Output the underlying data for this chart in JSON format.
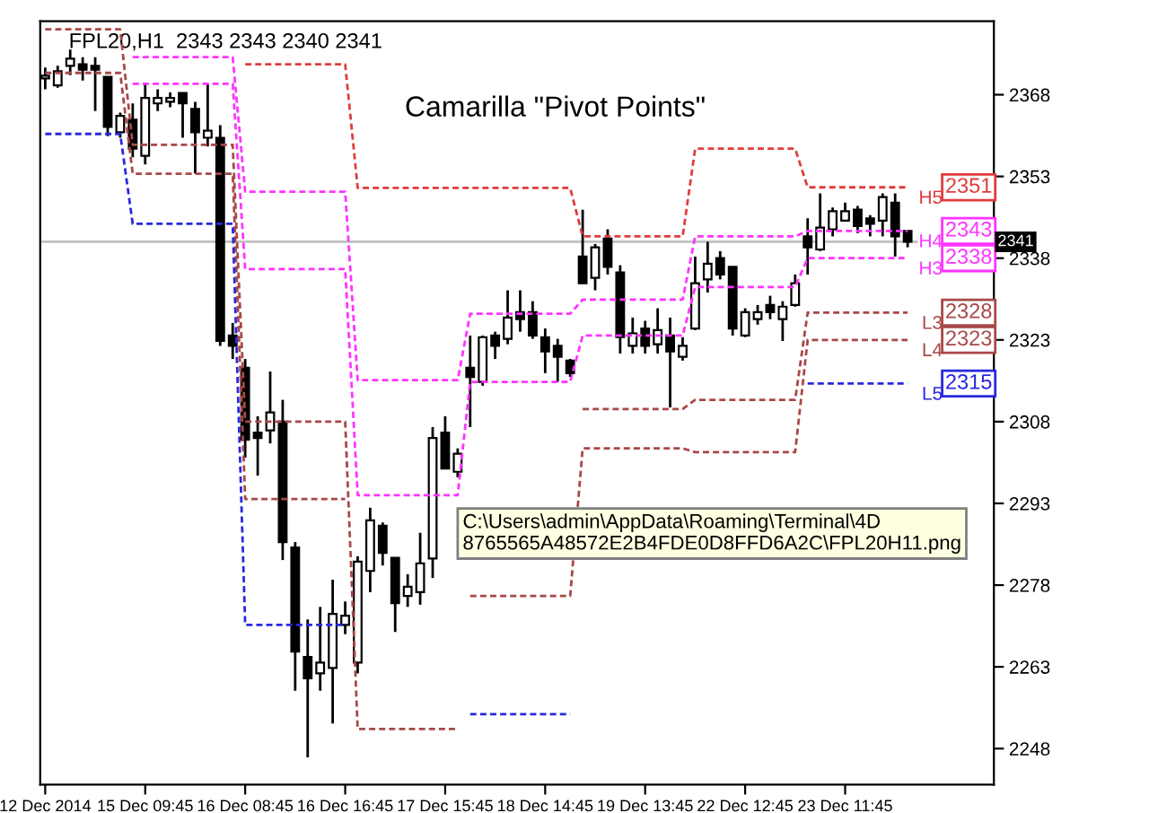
{
  "chart_data": {
    "type": "candlestick",
    "title": "Camarilla \"Pivot Points\"",
    "subtitle": "FPL20,H1  2343 2343 2340 2341",
    "annotations": [
      "C:\\Users\\admin\\AppData\\Roaming\\Terminal\\4D\n8765565A48572E2B4FDE0D8FFD6A2C\\FPL20H11.png"
    ],
    "categories": [
      "12 Dec 2014",
      null,
      null,
      null,
      null,
      null,
      null,
      null,
      "15 Dec 09:45",
      null,
      null,
      null,
      null,
      null,
      null,
      null,
      "16 Dec 08:45",
      null,
      null,
      null,
      null,
      null,
      null,
      null,
      "16 Dec 16:45",
      null,
      null,
      null,
      null,
      null,
      null,
      null,
      "17 Dec 15:45",
      null,
      null,
      null,
      null,
      null,
      null,
      null,
      "18 Dec 14:45",
      null,
      null,
      null,
      null,
      null,
      null,
      null,
      "19 Dec 13:45",
      null,
      null,
      null,
      null,
      null,
      null,
      null,
      "22 Dec 12:45",
      null,
      null,
      null,
      null,
      null,
      null,
      null,
      "23 Dec 11:45",
      null,
      null,
      null,
      null,
      null
    ],
    "ohlc": [
      [
        2371,
        2373,
        2369,
        2371.5
      ],
      [
        2369.7,
        2373.3,
        2369.3,
        2372.3
      ],
      [
        2373.3,
        2376.3,
        2371.6,
        2374.6
      ],
      [
        2373.6,
        2374.9,
        2370.6,
        2372.6
      ],
      [
        2373.3,
        2374.9,
        2365.0,
        2372.6
      ],
      [
        2371.3,
        2371.3,
        2360.4,
        2362.1
      ],
      [
        2361.1,
        2364.7,
        2360.1,
        2364.1
      ],
      [
        2363.4,
        2366.4,
        2356.5,
        2358.1
      ],
      [
        2356.8,
        2370.0,
        2355.2,
        2367.4
      ],
      [
        2366.4,
        2369.0,
        2365.0,
        2367.4
      ],
      [
        2366.7,
        2368.4,
        2365.7,
        2367.4
      ],
      [
        2368.3,
        2368.3,
        2360.1,
        2366.4
      ],
      [
        2365.4,
        2366.7,
        2353.5,
        2361.1
      ],
      [
        2360.1,
        2370.0,
        2358.5,
        2361.4
      ],
      [
        2360.1,
        2362.4,
        2321.9,
        2322.8
      ],
      [
        2323.8,
        2326.1,
        2319.5,
        2321.9
      ],
      [
        2317.9,
        2319.5,
        2301.4,
        2304.7
      ],
      [
        2306.0,
        2309.0,
        2298.1,
        2305.0
      ],
      [
        2306.4,
        2317.2,
        2304.0,
        2309.7
      ],
      [
        2308.0,
        2312.0,
        2282.6,
        2285.9
      ],
      [
        2284.9,
        2285.9,
        2258.6,
        2265.8
      ],
      [
        2264.8,
        2271.7,
        2246.4,
        2260.9
      ],
      [
        2261.8,
        2274.0,
        2258.6,
        2263.8
      ],
      [
        2262.8,
        2279.0,
        2252.6,
        2272.7
      ],
      [
        2270.7,
        2275.0,
        2269.0,
        2272.4
      ],
      [
        2263.8,
        2283.3,
        2261.8,
        2282.3
      ],
      [
        2280.6,
        2292.2,
        2276.7,
        2289.9
      ],
      [
        2288.9,
        2289.5,
        2281.6,
        2283.9
      ],
      [
        2283.0,
        2283.0,
        2269.4,
        2274.7
      ],
      [
        2276.0,
        2280.0,
        2274.0,
        2277.7
      ],
      [
        2276.7,
        2287.6,
        2274.4,
        2282.0
      ],
      [
        2282.9,
        2307.0,
        2279.3,
        2305.0
      ],
      [
        2306.0,
        2309.0,
        2299.4,
        2299.4
      ],
      [
        2298.8,
        2303.1,
        2297.8,
        2302.1
      ],
      [
        2317.9,
        2323.8,
        2307.0,
        2316.2
      ],
      [
        2315.3,
        2323.8,
        2314.6,
        2323.5
      ],
      [
        2323.8,
        2324.5,
        2319.5,
        2321.9
      ],
      [
        2323.2,
        2332.1,
        2322.2,
        2327.1
      ],
      [
        2328.1,
        2332.1,
        2324.5,
        2326.8
      ],
      [
        2328.1,
        2330.1,
        2323.2,
        2323.8
      ],
      [
        2323.5,
        2325.1,
        2316.9,
        2320.9
      ],
      [
        2321.9,
        2323.2,
        2315.3,
        2319.9
      ],
      [
        2319.2,
        2319.5,
        2316.2,
        2316.9
      ],
      [
        2338.3,
        2346.9,
        2333.4,
        2333.4
      ],
      [
        2334.4,
        2340.6,
        2332.1,
        2340.0
      ],
      [
        2341.6,
        2343.3,
        2335.0,
        2336.4
      ],
      [
        2335.4,
        2336.7,
        2320.5,
        2323.5
      ],
      [
        2321.9,
        2327.1,
        2320.5,
        2324.2
      ],
      [
        2325.1,
        2326.5,
        2320.5,
        2321.9
      ],
      [
        2322.2,
        2328.8,
        2320.5,
        2324.8
      ],
      [
        2323.8,
        2327.1,
        2310.6,
        2320.9
      ],
      [
        2319.9,
        2323.5,
        2319.2,
        2321.9
      ],
      [
        2325.1,
        2338.3,
        2324.8,
        2333.4
      ],
      [
        2334.1,
        2341.0,
        2331.7,
        2337.0
      ],
      [
        2338.0,
        2339.3,
        2334.1,
        2335.0
      ],
      [
        2336.4,
        2336.4,
        2323.8,
        2325.1
      ],
      [
        2323.8,
        2328.8,
        2323.5,
        2328.1
      ],
      [
        2326.8,
        2329.4,
        2325.8,
        2328.1
      ],
      [
        2329.4,
        2331.1,
        2326.8,
        2328.1
      ],
      [
        2326.8,
        2330.1,
        2322.8,
        2329.1
      ],
      [
        2329.4,
        2335.0,
        2329.1,
        2333.4
      ],
      [
        2342.0,
        2345.3,
        2335.0,
        2340.0
      ],
      [
        2339.6,
        2349.9,
        2339.3,
        2343.6
      ],
      [
        2343.3,
        2347.3,
        2342.0,
        2346.6
      ],
      [
        2344.9,
        2348.2,
        2344.9,
        2346.6
      ],
      [
        2346.9,
        2347.6,
        2342.6,
        2343.9
      ],
      [
        2345.3,
        2345.9,
        2342.0,
        2344.3
      ],
      [
        2344.9,
        2349.9,
        2342.0,
        2349.2
      ],
      [
        2348.2,
        2349.9,
        2338.3,
        2342.0
      ],
      [
        2343,
        2343,
        2340,
        2341
      ]
    ],
    "series": [
      {
        "name": "H5",
        "type": "line",
        "color": "#e03c3c",
        "line_style": "dashed",
        "values": [
          null,
          null,
          null,
          null,
          null,
          null,
          null,
          null,
          null,
          null,
          null,
          null,
          null,
          null,
          null,
          null,
          2373.6,
          2373.6,
          2373.6,
          2373.6,
          2373.6,
          2373.6,
          2373.6,
          2373.6,
          2373.6,
          2350.9,
          2350.9,
          2350.9,
          2350.9,
          2350.9,
          2350.9,
          2350.9,
          2350.9,
          2350.9,
          2350.9,
          2350.9,
          2350.9,
          2350.9,
          2350.9,
          2350.9,
          2350.9,
          2350.9,
          2350.9,
          2342.0,
          2342.0,
          2342.0,
          2342.0,
          2342.0,
          2342.0,
          2342.0,
          2342.0,
          2342.0,
          2358.1,
          2358.1,
          2358.1,
          2358.1,
          2358.1,
          2358.1,
          2358.1,
          2358.1,
          2358.1,
          2351,
          2351,
          2351,
          2351,
          2351,
          2351,
          2351,
          2351,
          2351
        ],
        "value_labels": [
          null,
          null,
          null,
          null,
          null,
          null,
          null,
          null,
          null,
          null,
          null,
          null,
          null,
          null,
          null,
          null,
          null,
          null,
          null,
          null,
          null,
          null,
          null,
          null,
          null,
          null,
          null,
          null,
          null,
          null,
          null,
          null,
          null,
          null,
          null,
          null,
          null,
          null,
          null,
          null,
          null,
          null,
          null,
          null,
          null,
          null,
          null,
          null,
          null,
          null,
          null,
          null,
          null,
          null,
          null,
          null,
          null,
          null,
          null,
          null,
          null,
          null,
          null,
          null,
          null,
          null,
          null,
          null,
          null,
          "2351"
        ]
      },
      {
        "name": "H4",
        "type": "line",
        "color": "#ff33ff",
        "line_style": "dashed",
        "values": [
          null,
          null,
          null,
          null,
          null,
          null,
          null,
          2374.9,
          2374.9,
          2374.9,
          2374.9,
          2374.9,
          2374.9,
          2374.9,
          2374.9,
          2374.9,
          2350.2,
          2350.2,
          2350.2,
          2350.2,
          2350.2,
          2350.2,
          2350.2,
          2350.2,
          2350.2,
          2315.6,
          2315.6,
          2315.6,
          2315.6,
          2315.6,
          2315.6,
          2315.6,
          2315.6,
          2315.6,
          2327.8,
          2327.8,
          2327.8,
          2327.8,
          2327.8,
          2327.8,
          2327.8,
          2327.8,
          2327.8,
          2330.4,
          2330.4,
          2330.4,
          2330.4,
          2330.4,
          2330.4,
          2330.4,
          2330.4,
          2330.4,
          2342.0,
          2342.0,
          2342.0,
          2342.0,
          2342.0,
          2342.0,
          2342.0,
          2342.0,
          2342.0,
          2343,
          2343,
          2343,
          2343,
          2343,
          2343,
          2343,
          2343,
          2343
        ],
        "value_labels": [
          null,
          null,
          null,
          null,
          null,
          null,
          null,
          null,
          null,
          null,
          null,
          null,
          null,
          null,
          null,
          null,
          null,
          null,
          null,
          null,
          null,
          null,
          null,
          null,
          null,
          null,
          null,
          null,
          null,
          null,
          null,
          null,
          null,
          null,
          null,
          null,
          null,
          null,
          null,
          null,
          null,
          null,
          null,
          null,
          null,
          null,
          null,
          null,
          null,
          null,
          null,
          null,
          null,
          null,
          null,
          null,
          null,
          null,
          null,
          null,
          null,
          null,
          null,
          null,
          null,
          null,
          null,
          null,
          null,
          "2343"
        ]
      },
      {
        "name": "H3",
        "type": "line",
        "color": "#ff33ff",
        "line_style": "dashed",
        "values": [
          null,
          null,
          null,
          null,
          null,
          null,
          null,
          2370.0,
          2370.0,
          2370.0,
          2370.0,
          2370.0,
          2370.0,
          2370.0,
          2370.0,
          2370.0,
          2336.0,
          2336.0,
          2336.0,
          2336.0,
          2336.0,
          2336.0,
          2336.0,
          2336.0,
          2336.0,
          2294.5,
          2294.5,
          2294.5,
          2294.5,
          2294.5,
          2294.5,
          2294.5,
          2294.5,
          2294.5,
          2315.3,
          2315.3,
          2315.3,
          2315.3,
          2315.3,
          2315.3,
          2315.3,
          2315.3,
          2315.3,
          2323.8,
          2323.8,
          2323.8,
          2323.8,
          2323.8,
          2323.8,
          2323.8,
          2323.8,
          2323.8,
          2332.7,
          2332.7,
          2332.7,
          2332.7,
          2332.7,
          2332.7,
          2332.7,
          2332.7,
          2332.7,
          2338,
          2338,
          2338,
          2338,
          2338,
          2338,
          2338,
          2338,
          2338
        ],
        "value_labels": [
          null,
          null,
          null,
          null,
          null,
          null,
          null,
          null,
          null,
          null,
          null,
          null,
          null,
          null,
          null,
          null,
          null,
          null,
          null,
          null,
          null,
          null,
          null,
          null,
          null,
          null,
          null,
          null,
          null,
          null,
          null,
          null,
          null,
          null,
          null,
          null,
          null,
          null,
          null,
          null,
          null,
          null,
          null,
          null,
          null,
          null,
          null,
          null,
          null,
          null,
          null,
          null,
          null,
          null,
          null,
          null,
          null,
          null,
          null,
          null,
          null,
          null,
          null,
          null,
          null,
          null,
          null,
          null,
          null,
          "2338"
        ]
      },
      {
        "name": "L3",
        "type": "line",
        "color": "#a84848",
        "line_style": "dashed",
        "values": [
          2380,
          2380,
          2380,
          2380,
          2380,
          2380,
          2380,
          2358.8,
          2358.8,
          2358.8,
          2358.8,
          2358.8,
          2358.8,
          2358.8,
          2358.8,
          2358.8,
          2308.0,
          2308.0,
          2308.0,
          2308.0,
          2308.0,
          2308.0,
          2308.0,
          2308.0,
          2308.0,
          2251.6,
          2251.6,
          2251.6,
          2251.6,
          2251.6,
          2251.6,
          2251.6,
          2251.6,
          2251.6,
          null,
          null,
          null,
          null,
          null,
          null,
          null,
          null,
          null,
          2310.3,
          2310.3,
          2310.3,
          2310.3,
          2310.3,
          2310.3,
          2310.3,
          2310.3,
          2310.3,
          2312.0,
          2312.0,
          2312.0,
          2312.0,
          2312.0,
          2312.0,
          2312.0,
          2312.0,
          2312.0,
          2328,
          2328,
          2328,
          2328,
          2328,
          2328,
          2328,
          2328,
          2328
        ],
        "value_labels": [
          null,
          null,
          null,
          null,
          null,
          null,
          null,
          null,
          null,
          null,
          null,
          null,
          null,
          null,
          null,
          null,
          null,
          null,
          null,
          null,
          null,
          null,
          null,
          null,
          null,
          null,
          null,
          null,
          null,
          null,
          null,
          null,
          null,
          null,
          null,
          null,
          null,
          null,
          null,
          null,
          null,
          null,
          null,
          null,
          null,
          null,
          null,
          null,
          null,
          null,
          null,
          null,
          null,
          null,
          null,
          null,
          null,
          null,
          null,
          null,
          null,
          null,
          null,
          null,
          null,
          null,
          null,
          null,
          null,
          "2328"
        ]
      },
      {
        "name": "L4",
        "type": "line",
        "color": "#a84848",
        "line_style": "dashed",
        "values": [
          2372,
          2372,
          2372,
          2372,
          2372,
          2372,
          2372,
          2353.5,
          2353.5,
          2353.5,
          2353.5,
          2353.5,
          2353.5,
          2353.5,
          2353.5,
          2353.5,
          2293.8,
          2293.8,
          2293.8,
          2293.8,
          2293.8,
          2293.8,
          2293.8,
          2293.8,
          2293.8,
          null,
          null,
          null,
          null,
          null,
          null,
          null,
          null,
          null,
          2276.0,
          2276.0,
          2276.0,
          2276.0,
          2276.0,
          2276.0,
          2276.0,
          2276.0,
          2276.0,
          2303.1,
          2303.1,
          2303.1,
          2303.1,
          2303.1,
          2303.1,
          2303.1,
          2303.1,
          2303.1,
          2302.4,
          2302.4,
          2302.4,
          2302.4,
          2302.4,
          2302.4,
          2302.4,
          2302.4,
          2302.4,
          2323,
          2323,
          2323,
          2323,
          2323,
          2323,
          2323,
          2323,
          2323
        ],
        "value_labels": [
          null,
          null,
          null,
          null,
          null,
          null,
          null,
          null,
          null,
          null,
          null,
          null,
          null,
          null,
          null,
          null,
          null,
          null,
          null,
          null,
          null,
          null,
          null,
          null,
          null,
          null,
          null,
          null,
          null,
          null,
          null,
          null,
          null,
          null,
          null,
          null,
          null,
          null,
          null,
          null,
          null,
          null,
          null,
          null,
          null,
          null,
          null,
          null,
          null,
          null,
          null,
          null,
          null,
          null,
          null,
          null,
          null,
          null,
          null,
          null,
          null,
          null,
          null,
          null,
          null,
          null,
          null,
          null,
          null,
          "2323"
        ]
      },
      {
        "name": "L5",
        "type": "line",
        "color": "#2828e0",
        "line_style": "dashed",
        "values": [
          2360.8,
          2360.8,
          2360.8,
          2360.8,
          2360.8,
          2360.8,
          2360.8,
          2344.3,
          2344.3,
          2344.3,
          2344.3,
          2344.3,
          2344.3,
          2344.3,
          2344.3,
          2344.3,
          2270.7,
          2270.7,
          2270.7,
          2270.7,
          2270.7,
          2270.7,
          2270.7,
          2270.7,
          2270.7,
          null,
          null,
          null,
          null,
          null,
          null,
          null,
          null,
          null,
          2254.3,
          2254.3,
          2254.3,
          2254.3,
          2254.3,
          2254.3,
          2254.3,
          2254.3,
          2254.3,
          null,
          null,
          null,
          null,
          null,
          null,
          null,
          null,
          null,
          null,
          null,
          null,
          null,
          null,
          null,
          null,
          null,
          null,
          2315,
          2315,
          2315,
          2315,
          2315,
          2315,
          2315,
          2315,
          2315
        ],
        "value_labels": [
          null,
          null,
          null,
          null,
          null,
          null,
          null,
          null,
          null,
          null,
          null,
          null,
          null,
          null,
          null,
          null,
          null,
          null,
          null,
          null,
          null,
          null,
          null,
          null,
          null,
          null,
          null,
          null,
          null,
          null,
          null,
          null,
          null,
          null,
          null,
          null,
          null,
          null,
          null,
          null,
          null,
          null,
          null,
          null,
          null,
          null,
          null,
          null,
          null,
          null,
          null,
          null,
          null,
          null,
          null,
          null,
          null,
          null,
          null,
          null,
          null,
          null,
          null,
          null,
          null,
          null,
          null,
          null,
          null,
          "2315"
        ]
      }
    ],
    "ref_lines": [
      {
        "axis": "y",
        "value": 2341,
        "label": "2341",
        "color": "#c0c0c0"
      }
    ],
    "ylim": [
      2241.4,
      2381.5
    ],
    "yticks": [
      2248,
      2263,
      2278,
      2293,
      2308,
      2323,
      2338,
      2353,
      2368
    ],
    "grid": false,
    "legend": "right"
  }
}
